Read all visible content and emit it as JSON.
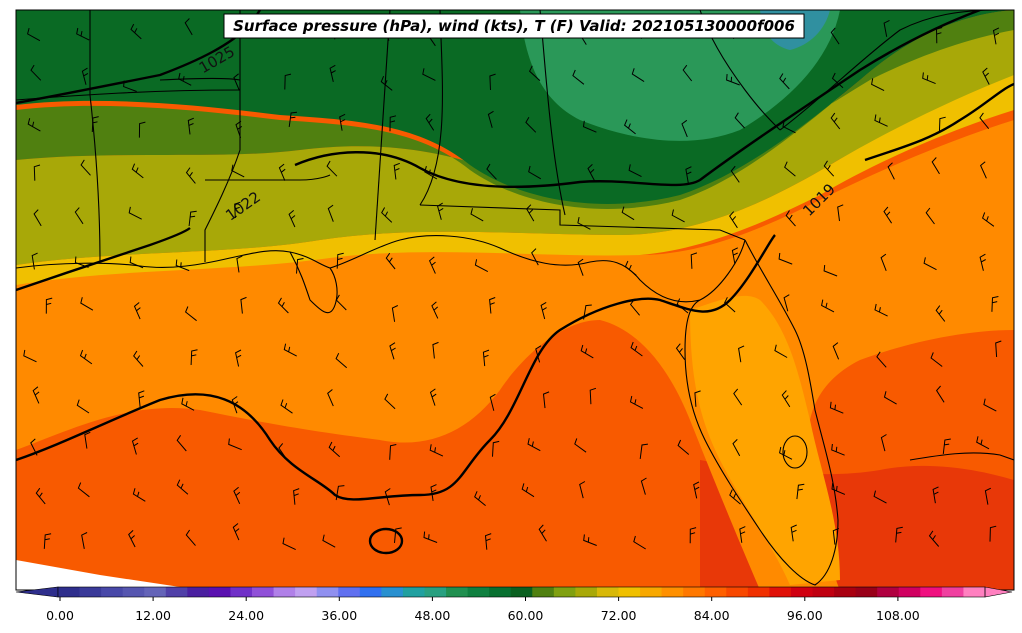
{
  "title": "Surface pressure (hPa), wind (kts), T (F) Valid: 202105130000f006",
  "colorbar": {
    "ticks": [
      "0.00",
      "12.00",
      "24.00",
      "36.00",
      "48.00",
      "60.00",
      "72.00",
      "84.00",
      "96.00",
      "108.00"
    ],
    "min": -6,
    "max": 120,
    "step": 3,
    "colors": [
      "#2e2e8c",
      "#3a3a99",
      "#4848a8",
      "#5656b0",
      "#6464b8",
      "#5040a8",
      "#4a1fa0",
      "#5a10b0",
      "#7030c8",
      "#9050d8",
      "#b080e8",
      "#c0a0f0",
      "#9090f0",
      "#6070f0",
      "#3070f0",
      "#2890d0",
      "#20a0a0",
      "#28a080",
      "#209050",
      "#0f8040",
      "#087030",
      "#0a6020",
      "#508010",
      "#80a010",
      "#a8a808",
      "#d8b808",
      "#f0c000",
      "#f8a800",
      "#ff9000",
      "#ff7800",
      "#ff6000",
      "#f84800",
      "#f03000",
      "#e01008",
      "#d00010",
      "#c00010",
      "#a80010",
      "#980018",
      "#b00040",
      "#d00060",
      "#f01080",
      "#f040a0",
      "#ff80c0"
    ]
  },
  "contour_labels": [
    {
      "text": "1025"
    },
    {
      "text": "1022"
    },
    {
      "text": "1019"
    }
  ],
  "legend_colors": {
    "cold_green": "#087030",
    "olive": "#a8a808",
    "yellow": "#f0c000",
    "orange": "#ff9000",
    "red_orange": "#ff6000"
  }
}
